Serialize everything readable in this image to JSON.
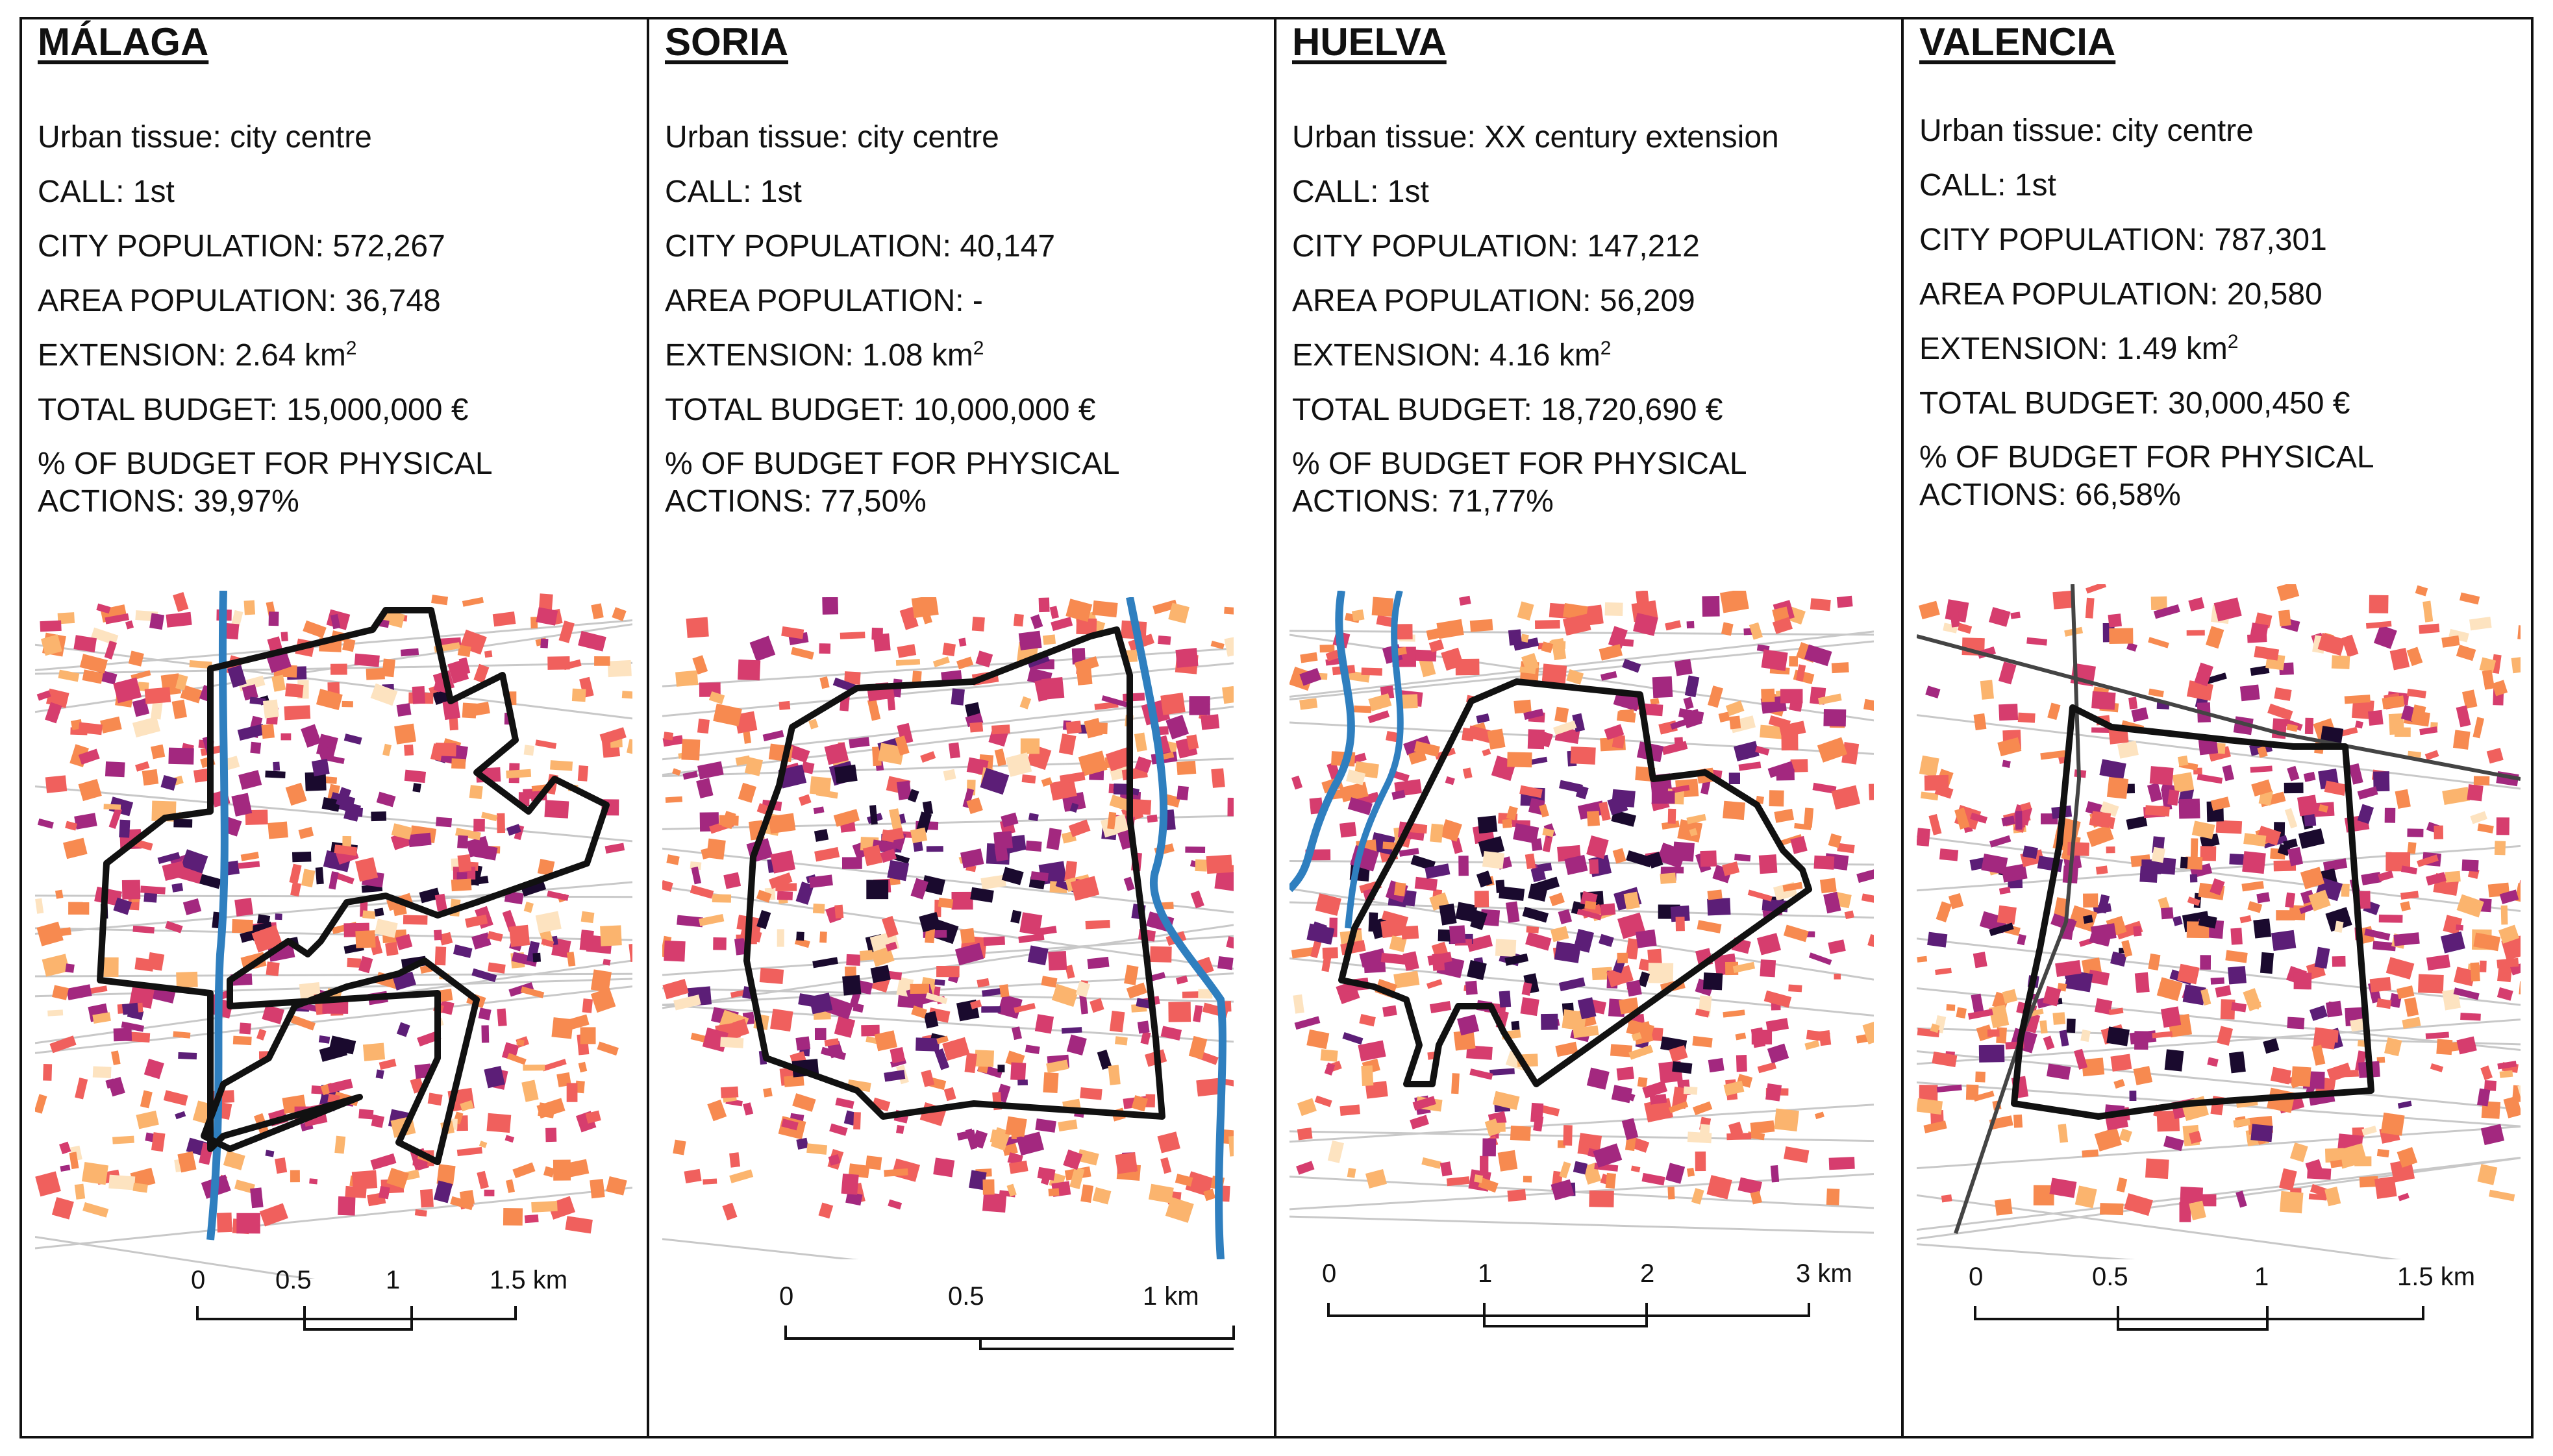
{
  "panels": [
    {
      "city": "MÁLAGA",
      "tissue": "Urban tissue: city centre",
      "call": "CALL: 1st",
      "city_population": "CITY POPULATION: 572,267",
      "area_population": "AREA POPULATION: 36,748",
      "extension": "EXTENSION: 2.64 km",
      "extension_sup": "2",
      "budget": "TOTAL BUDGET: 15,000,000 €",
      "physical": "% OF BUDGET FOR PHYSICAL ACTIONS: 39,97%",
      "scale": [
        "0",
        "0.5",
        "1",
        "1.5 km"
      ]
    },
    {
      "city": "SORIA",
      "tissue": "Urban tissue: city centre",
      "call": "CALL: 1st",
      "city_population": "CITY POPULATION: 40,147",
      "area_population": "AREA POPULATION: -",
      "extension": "EXTENSION: 1.08 km",
      "extension_sup": "2",
      "budget": "TOTAL BUDGET: 10,000,000 €",
      "physical": "% OF BUDGET FOR PHYSICAL ACTIONS: 77,50%",
      "scale": [
        "0",
        "0.5",
        "1 km"
      ]
    },
    {
      "city": "HUELVA",
      "tissue": "Urban tissue: XX century extension",
      "call": "CALL: 1st",
      "city_population": "CITY POPULATION: 147,212",
      "area_population": "AREA POPULATION: 56,209",
      "extension": "EXTENSION: 4.16 km",
      "extension_sup": "2",
      "budget": "TOTAL BUDGET: 18,720,690 €",
      "physical": "% OF BUDGET FOR PHYSICAL ACTIONS: 71,77%",
      "scale": [
        "0",
        "1",
        "2",
        "3 km"
      ]
    },
    {
      "city": "VALENCIA",
      "tissue": "Urban tissue: city centre",
      "call": "CALL: 1st",
      "city_population": "CITY POPULATION: 787,301",
      "area_population": "AREA POPULATION: 20,580",
      "extension": "EXTENSION: 1.49 km",
      "extension_sup": "2",
      "budget": "TOTAL BUDGET: 30,000,450 €",
      "physical": "% OF BUDGET FOR PHYSICAL ACTIONS: 66,58%",
      "scale": [
        "0",
        "0.5",
        "1",
        "1.5 km"
      ]
    }
  ],
  "colors": {
    "boundary": "#111111",
    "river": "#2f7fbf",
    "road": "#c8c8c8",
    "palette": [
      "#fde3c0",
      "#fbb46e",
      "#f78a50",
      "#f0605d",
      "#d63d6e",
      "#a3287f",
      "#5c1e77",
      "#1a0a2e"
    ]
  }
}
